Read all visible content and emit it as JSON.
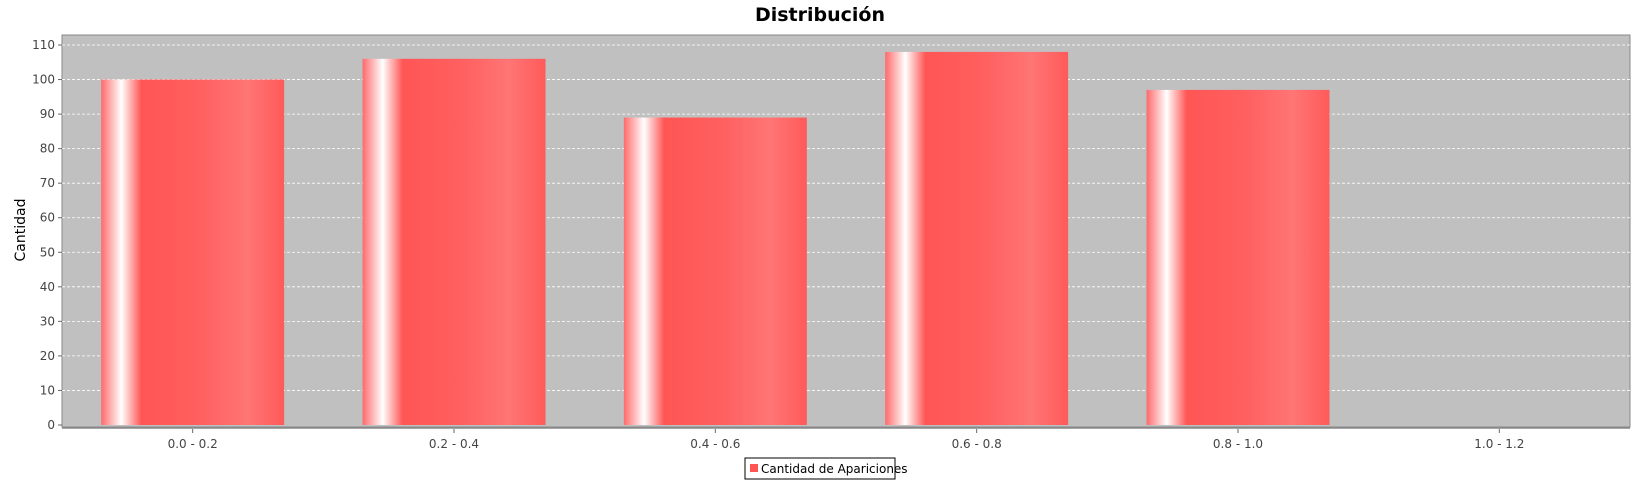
{
  "chart_data": {
    "type": "bar",
    "title": "Distribución",
    "xlabel": "",
    "ylabel": "Cantidad",
    "categories": [
      "0.0 - 0.2",
      "0.2 - 0.4",
      "0.4 - 0.6",
      "0.6 - 0.8",
      "0.8 - 1.0",
      "1.0 - 1.2"
    ],
    "series": [
      {
        "name": "Cantidad de Apariciones",
        "values": [
          100,
          106,
          89,
          108,
          97,
          0
        ]
      }
    ],
    "ylim": [
      0,
      110
    ],
    "yticks": [
      0,
      10,
      20,
      30,
      40,
      50,
      60,
      70,
      80,
      90,
      100,
      110
    ],
    "grid": true,
    "legend_position": "bottom",
    "colors": {
      "bar": "#ff5555",
      "plot_background": "#c0c0c0",
      "gridline": "#ffffff"
    }
  }
}
